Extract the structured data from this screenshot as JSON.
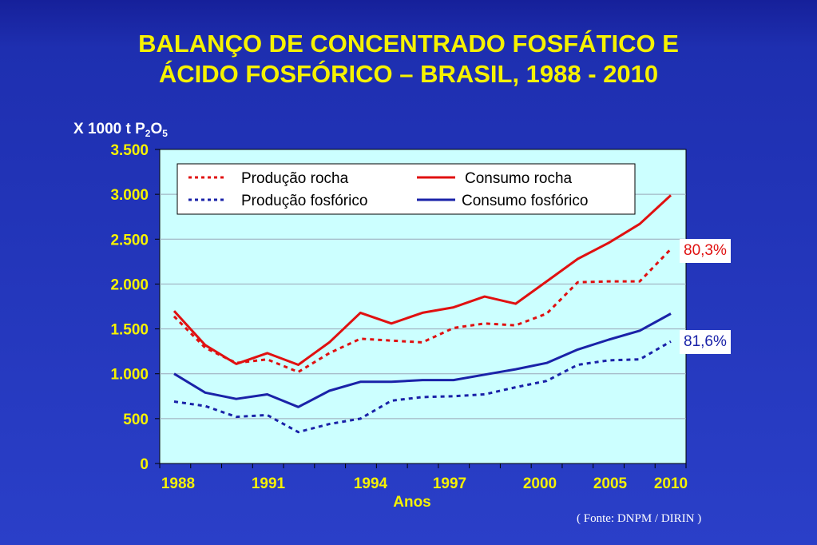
{
  "title": {
    "line1": "BALANÇO DE CONCENTRADO FOSFÁTICO E",
    "line2": "ÁCIDO FOSFÓRICO – BRASIL, 1988 - 2010"
  },
  "source": "( Fonte:  DNPM / DIRIN )",
  "callouts": {
    "rocha": "80,3%",
    "fosforico": "81,6%"
  },
  "colors": {
    "background": "#1e2fb0",
    "title": "#f6f200",
    "plot_bg": "#ccffff",
    "rocha": "#e01010",
    "fosforico": "#1a22a8"
  },
  "chart_data": {
    "type": "line",
    "ylabel_prefix": "X 1000 t P",
    "ylabel_sub1": "2",
    "ylabel_mid": "O",
    "ylabel_sub2": "5",
    "xlabel": "Anos",
    "ylim": [
      0,
      3500
    ],
    "yticks": [
      0,
      500,
      1000,
      1500,
      2000,
      2500,
      3000,
      3500
    ],
    "ytick_labels": [
      "0",
      "500",
      "1.000",
      "1.500",
      "2.000",
      "2.500",
      "3.000",
      "3.500"
    ],
    "xtick_labels": [
      "1988",
      "1991",
      "1994",
      "1997",
      "2000",
      "2005",
      "2010"
    ],
    "grid": true,
    "legend_position": "top",
    "series": [
      {
        "name": "Produção rocha",
        "style": "dotted",
        "color": "#e01010",
        "values": [
          1640,
          1290,
          1120,
          1160,
          1020,
          1230,
          1390,
          1370,
          1350,
          1510,
          1560,
          1540,
          1670,
          2020,
          2030,
          2030,
          2390
        ]
      },
      {
        "name": "Consumo rocha",
        "style": "solid",
        "color": "#e01010",
        "values": [
          1700,
          1320,
          1110,
          1230,
          1100,
          1350,
          1680,
          1560,
          1680,
          1740,
          1860,
          1780,
          2030,
          2280,
          2460,
          2670,
          2990
        ]
      },
      {
        "name": "Produção fosfórico",
        "style": "dotted",
        "color": "#1a22a8",
        "values": [
          690,
          640,
          520,
          540,
          350,
          440,
          500,
          700,
          740,
          750,
          770,
          850,
          920,
          1100,
          1150,
          1160,
          1360
        ]
      },
      {
        "name": "Consumo fosfórico",
        "style": "solid",
        "color": "#1a22a8",
        "values": [
          1000,
          790,
          720,
          770,
          630,
          810,
          910,
          910,
          930,
          930,
          990,
          1050,
          1120,
          1270,
          1380,
          1480,
          1670
        ]
      }
    ]
  }
}
